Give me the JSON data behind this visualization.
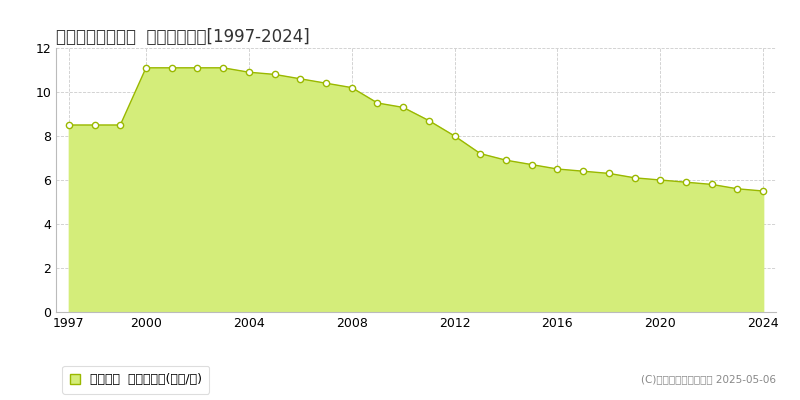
{
  "title": "日高郡由良町衣奈  基準地価推移[1997-2024]",
  "years": [
    1997,
    1998,
    1999,
    2000,
    2001,
    2002,
    2003,
    2004,
    2005,
    2006,
    2007,
    2008,
    2009,
    2010,
    2011,
    2012,
    2013,
    2014,
    2015,
    2016,
    2017,
    2018,
    2019,
    2020,
    2021,
    2022,
    2023,
    2024
  ],
  "values": [
    8.5,
    8.5,
    8.5,
    11.1,
    11.1,
    11.1,
    11.1,
    10.9,
    10.8,
    10.6,
    10.4,
    10.2,
    9.5,
    9.3,
    8.7,
    8.0,
    7.2,
    6.9,
    6.7,
    6.5,
    6.4,
    6.3,
    6.1,
    6.0,
    5.9,
    5.8,
    5.6,
    5.5
  ],
  "fill_color": "#d4ed7a",
  "line_color": "#9ab800",
  "marker_color": "#ffffff",
  "marker_edge_color": "#9ab800",
  "background_color": "#ffffff",
  "plot_bg_color": "#ffffff",
  "grid_color": "#cccccc",
  "ylim": [
    0,
    12
  ],
  "yticks": [
    0,
    2,
    4,
    6,
    8,
    10,
    12
  ],
  "xlabel_ticks": [
    1997,
    2000,
    2004,
    2008,
    2012,
    2016,
    2020,
    2024
  ],
  "legend_label": "基準地価  平均坪単価(万円/坪)",
  "copyright_text": "(C)土地価格ドットコム 2025-05-06"
}
